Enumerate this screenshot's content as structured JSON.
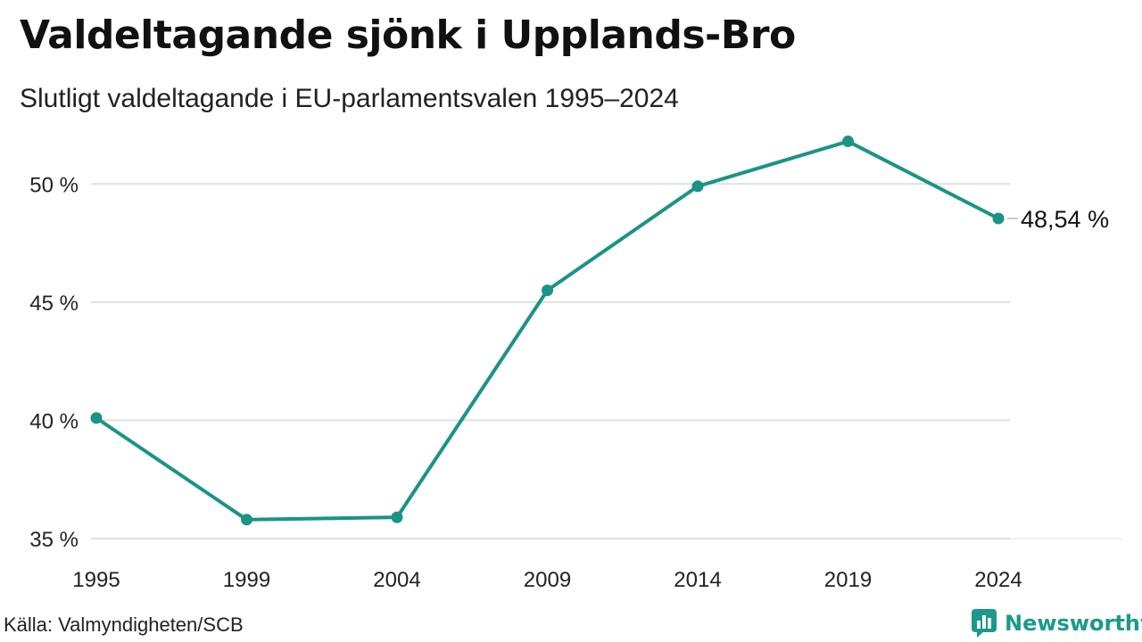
{
  "header": {
    "title": "Valdeltagande sjönk i Upplands-Bro",
    "subtitle": "Slutligt valdeltagande i EU-parlamentsvalen 1995–2024"
  },
  "footer": {
    "source": "Källa: Valmyndigheten/SCB",
    "brand": "Newsworthy",
    "brand_icon": "bar-chart-speech-icon"
  },
  "colors": {
    "line": "#1a9485",
    "grid": "#e0e0e0",
    "brand": "#1b9a8b"
  },
  "chart_data": {
    "type": "line",
    "x": [
      "1995",
      "1999",
      "2004",
      "2009",
      "2014",
      "2019",
      "2024"
    ],
    "series": [
      {
        "values": [
          40.1,
          35.8,
          35.9,
          45.5,
          49.9,
          51.8,
          48.54
        ]
      }
    ],
    "ylim": [
      35,
      52.5
    ],
    "yticks": [
      35,
      40,
      45,
      50
    ],
    "ytick_labels": [
      "35 %",
      "40 %",
      "45 %",
      "50 %"
    ],
    "end_label": "48,54 %",
    "grid": true,
    "legend": "none"
  }
}
